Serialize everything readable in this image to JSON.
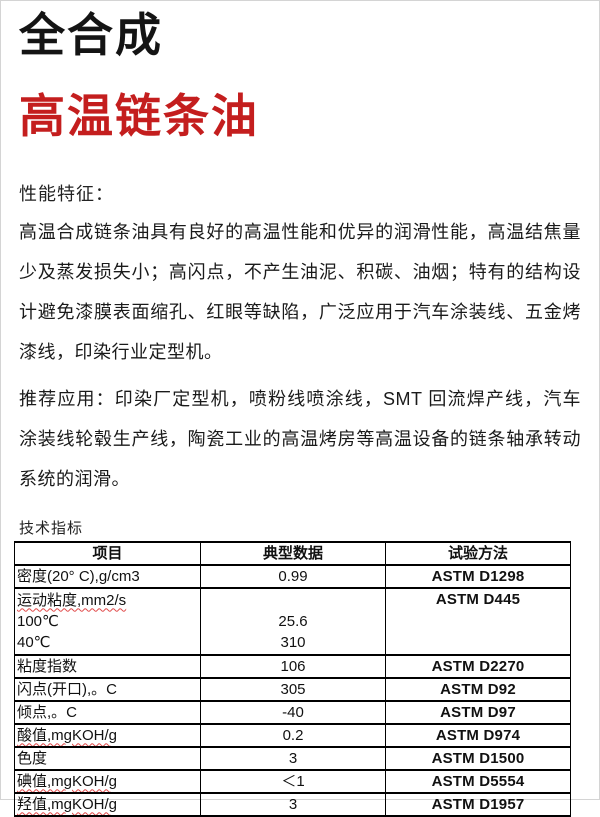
{
  "header": {
    "title_line1": "全合成",
    "title_line2": "高温链条油",
    "accent_color": "#c41e1e"
  },
  "features": {
    "heading": "性能特征：",
    "body": "高温合成链条油具有良好的高温性能和优异的润滑性能，高温结焦量少及蒸发损失小；高闪点，不产生油泥、积碳、油烟；特有的结构设计避免漆膜表面缩孔、红眼等缺陷，广泛应用于汽车涂装线、五金烤漆线，印染行业定型机。"
  },
  "applications": {
    "body": "推荐应用：印染厂定型机，喷粉线喷涂线，SMT 回流焊产线，汽车涂装线轮毂生产线，陶瓷工业的高温烤房等高温设备的链条轴承转动系统的润滑。"
  },
  "specs": {
    "heading": "技术指标",
    "columns": [
      "项目",
      "典型数据",
      "试验方法"
    ],
    "rows": [
      {
        "item": "密度(20° C),g/cm3",
        "value": "0.99",
        "method": "ASTM D1298"
      },
      {
        "item_line1": "运动粘度,mm2/s",
        "item_line2": "100℃",
        "item_line3": "40℃",
        "value_100c": "25.6",
        "value_40c": "310",
        "method": "ASTM D445"
      },
      {
        "item": "粘度指数",
        "value": "106",
        "method": "ASTM D2270"
      },
      {
        "item": "闪点(开口),。C",
        "value": "305",
        "method": "ASTM D92"
      },
      {
        "item": "倾点,。C",
        "value": "-40",
        "method": "ASTM D97"
      },
      {
        "item": "酸值,mgKOH/g",
        "value": "0.2",
        "method": "ASTM D974"
      },
      {
        "item": "色度",
        "value": "3",
        "method": "ASTM D1500"
      },
      {
        "item": "碘值,mgKOH/g",
        "value": "＜1",
        "method": "ASTM D5554"
      },
      {
        "item": "羟值,mgKOH/g",
        "value": "3",
        "method": "ASTM D1957"
      }
    ]
  }
}
